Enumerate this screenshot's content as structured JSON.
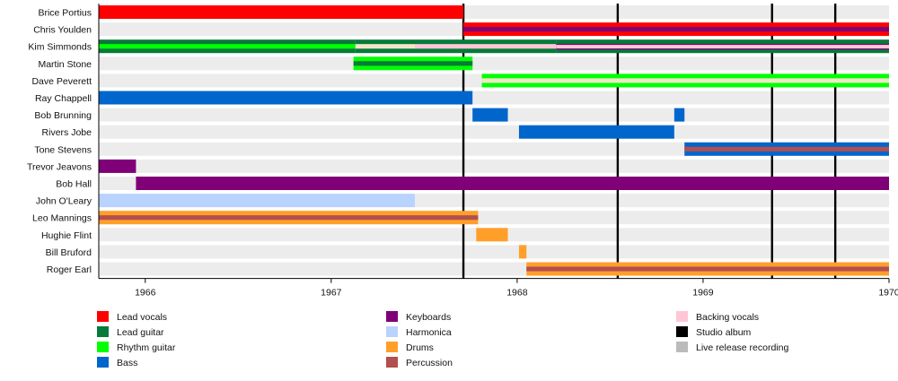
{
  "chart_data": {
    "type": "timeline",
    "title": "",
    "xlabel": "",
    "ylabel": "",
    "x_range": [
      1965.75,
      1970.0
    ],
    "x_ticks": [
      1966,
      1967,
      1968,
      1969,
      1970
    ],
    "roles": {
      "lead_vocals": {
        "label": "Lead vocals",
        "color": "#ff0000"
      },
      "lead_guitar": {
        "label": "Lead guitar",
        "color": "#067a3a"
      },
      "rhythm_guitar": {
        "label": "Rhythm guitar",
        "color": "#00ff00"
      },
      "bass": {
        "label": "Bass",
        "color": "#0066cc"
      },
      "keyboards": {
        "label": "Keyboards",
        "color": "#7f0077"
      },
      "harmonica": {
        "label": "Harmonica",
        "color": "#b9d3ff"
      },
      "drums": {
        "label": "Drums",
        "color": "#ff9f2a"
      },
      "percussion": {
        "label": "Percussion",
        "color": "#b24f4f"
      },
      "backing_vocals": {
        "label": "Backing vocals",
        "color": "#ffc6d6"
      },
      "studio_album": {
        "label": "Studio album",
        "color": "#000000"
      },
      "live_release": {
        "label": "Live release recording",
        "color": "#bbbbbb"
      }
    },
    "legend": {
      "columns": [
        [
          "lead_vocals",
          "lead_guitar",
          "rhythm_guitar",
          "bass"
        ],
        [
          "keyboards",
          "harmonica",
          "drums",
          "percussion"
        ],
        [
          "backing_vocals",
          "studio_album",
          "live_release"
        ]
      ],
      "placement": "bottom"
    },
    "studio_albums": [
      1967.71,
      1968.54,
      1969.37,
      1969.71
    ],
    "members": [
      {
        "name": "Brice Portius",
        "spans": [
          {
            "start": 1965.75,
            "end": 1967.71,
            "role": "lead_vocals"
          }
        ]
      },
      {
        "name": "Chris Youlden",
        "spans": [
          {
            "start": 1967.71,
            "end": 1970.0,
            "role": "lead_vocals",
            "inner": "keyboards"
          }
        ]
      },
      {
        "name": "Kim Simmonds",
        "spans": [
          {
            "start": 1965.75,
            "end": 1967.13,
            "role": "lead_guitar",
            "inner": "rhythm_guitar"
          },
          {
            "start": 1967.13,
            "end": 1967.45,
            "role": "lead_guitar",
            "inner": "beige"
          },
          {
            "start": 1967.45,
            "end": 1968.21,
            "role": "lead_guitar",
            "inner": "backing_vocals"
          },
          {
            "start": 1968.21,
            "end": 1970.0,
            "role": "lead_guitar",
            "inner": "backing_vocals",
            "line": "keyboards"
          }
        ]
      },
      {
        "name": "Martin Stone",
        "spans": [
          {
            "start": 1967.12,
            "end": 1967.76,
            "role": "rhythm_guitar",
            "inner": "lead_guitar"
          }
        ]
      },
      {
        "name": "Dave Peverett",
        "spans": [
          {
            "start": 1967.81,
            "end": 1970.0,
            "role": "rhythm_guitar",
            "inner": "beige"
          }
        ]
      },
      {
        "name": "Ray Chappell",
        "spans": [
          {
            "start": 1965.75,
            "end": 1967.76,
            "role": "bass"
          }
        ]
      },
      {
        "name": "Bob Brunning",
        "spans": [
          {
            "start": 1967.76,
            "end": 1967.95,
            "role": "bass"
          },
          {
            "start": 1968.845,
            "end": 1968.9,
            "role": "bass"
          }
        ]
      },
      {
        "name": "Rivers Jobe",
        "spans": [
          {
            "start": 1968.01,
            "end": 1968.845,
            "role": "bass"
          }
        ]
      },
      {
        "name": "Tone Stevens",
        "spans": [
          {
            "start": 1968.9,
            "end": 1970.0,
            "role": "bass",
            "inner": "percussion"
          }
        ]
      },
      {
        "name": "Trevor Jeavons",
        "spans": [
          {
            "start": 1965.75,
            "end": 1965.95,
            "role": "keyboards"
          }
        ]
      },
      {
        "name": "Bob Hall",
        "spans": [
          {
            "start": 1965.95,
            "end": 1970.0,
            "role": "keyboards"
          }
        ]
      },
      {
        "name": "John O'Leary",
        "spans": [
          {
            "start": 1965.75,
            "end": 1967.45,
            "role": "harmonica"
          }
        ]
      },
      {
        "name": "Leo Mannings",
        "spans": [
          {
            "start": 1965.75,
            "end": 1967.79,
            "role": "drums",
            "inner": "percussion"
          }
        ]
      },
      {
        "name": "Hughie Flint",
        "spans": [
          {
            "start": 1967.78,
            "end": 1967.95,
            "role": "drums"
          }
        ]
      },
      {
        "name": "Bill Bruford",
        "spans": [
          {
            "start": 1968.01,
            "end": 1968.05,
            "role": "drums"
          }
        ]
      },
      {
        "name": "Roger Earl",
        "spans": [
          {
            "start": 1968.05,
            "end": 1970.0,
            "role": "drums",
            "inner": "percussion"
          }
        ]
      }
    ]
  }
}
